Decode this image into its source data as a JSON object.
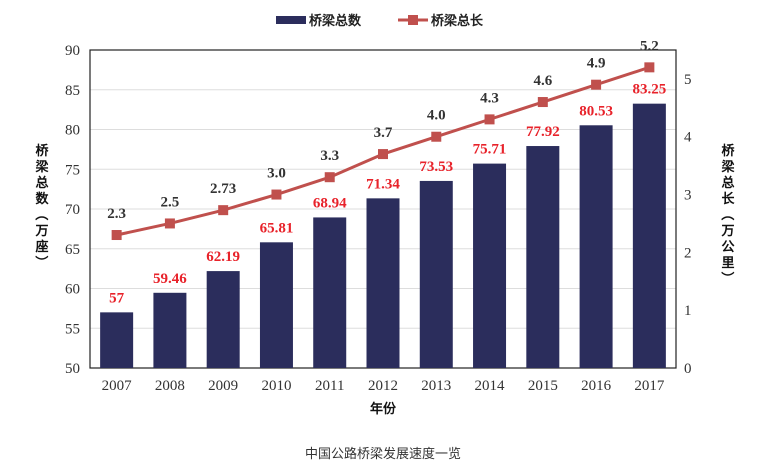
{
  "chart_data": {
    "type": "bar+line",
    "categories": [
      "2007",
      "2008",
      "2009",
      "2010",
      "2011",
      "2012",
      "2013",
      "2014",
      "2015",
      "2016",
      "2017"
    ],
    "series": [
      {
        "name": "桥梁总数",
        "type": "bar",
        "axis": "left",
        "values": [
          57,
          59.46,
          62.19,
          65.81,
          68.94,
          71.34,
          73.53,
          75.71,
          77.92,
          80.53,
          83.25
        ],
        "labels": [
          "57",
          "59.46",
          "62.19",
          "65.81",
          "68.94",
          "71.34",
          "73.53",
          "75.71",
          "77.92",
          "80.53",
          "83.25"
        ]
      },
      {
        "name": "桥梁总长",
        "type": "line",
        "axis": "right",
        "values": [
          2.3,
          2.5,
          2.73,
          3.0,
          3.3,
          3.7,
          4.0,
          4.3,
          4.6,
          4.9,
          5.2
        ],
        "labels": [
          "2.3",
          "2.5",
          "2.73",
          "3.0",
          "3.3",
          "3.7",
          "4.0",
          "4.3",
          "4.6",
          "4.9",
          "5.2"
        ]
      }
    ],
    "xlabel": "年份",
    "ylabel": "桥梁总数（万座）",
    "y2label": "桥梁总长（万公里）",
    "ylim": [
      50,
      90
    ],
    "yticks": [
      "50",
      "55",
      "60",
      "65",
      "70",
      "75",
      "80",
      "85",
      "90"
    ],
    "y2lim": [
      0,
      5.5
    ],
    "y2ticks": [
      "0",
      "1",
      "2",
      "3",
      "4",
      "5"
    ],
    "legend": "top",
    "grid": true,
    "colors": {
      "bar": "#2b2d5c",
      "line": "#c0504d",
      "bar_label": "#e8222a"
    }
  },
  "caption": "中国公路桥梁发展速度一览"
}
